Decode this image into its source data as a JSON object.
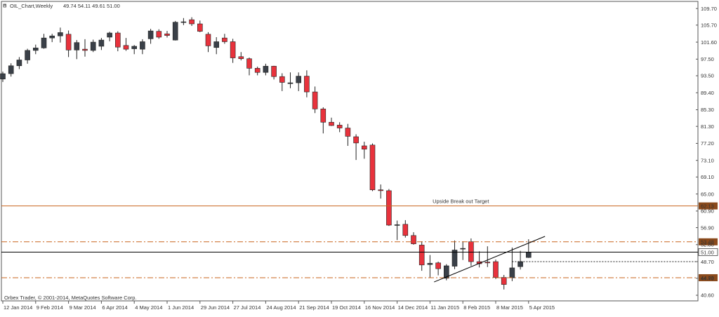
{
  "header": {
    "symbol_timeframe": "OIL_Chart,Weekly",
    "ohlc_readout": "49.74 54.11 49.61 51.00"
  },
  "copyright": "Orbex Trader, © 2001-2014, MetaQuotes Software Corp.",
  "colors": {
    "bull": "#3a4048",
    "bear": "#e8323c",
    "wick": "#222222",
    "axis": "#555555",
    "resistance": "#c8641e",
    "dashdot": "#c8641e",
    "price_line": "#000000",
    "trendline": "#000000"
  },
  "chart_data": {
    "type": "candlestick",
    "title": "",
    "ylim": [
      40.6,
      110.4
    ],
    "y_ticks": [
      "109.70",
      "105.70",
      "101.60",
      "97.50",
      "93.50",
      "89.40",
      "85.30",
      "81.30",
      "77.20",
      "73.10",
      "69.10",
      "65.00",
      "60.90",
      "56.90",
      "52.80",
      "48.70",
      "44.70",
      "40.60"
    ],
    "x_ticks": [
      {
        "i": 0,
        "label": "12 Jan 2014"
      },
      {
        "i": 4,
        "label": "9 Feb 2014"
      },
      {
        "i": 8,
        "label": "9 Mar 2014"
      },
      {
        "i": 12,
        "label": "6 Apr 2014"
      },
      {
        "i": 16,
        "label": "4 May 2014"
      },
      {
        "i": 20,
        "label": "1 Jun 2014"
      },
      {
        "i": 24,
        "label": "29 Jun 2014"
      },
      {
        "i": 28,
        "label": "27 Jul 2014"
      },
      {
        "i": 32,
        "label": "24 Aug 2014"
      },
      {
        "i": 36,
        "label": "21 Sep 2014"
      },
      {
        "i": 40,
        "label": "19 Oct 2014"
      },
      {
        "i": 44,
        "label": "16 Nov 2014"
      },
      {
        "i": 48,
        "label": "14 Dec 2014"
      },
      {
        "i": 52,
        "label": "11 Jan 2015"
      },
      {
        "i": 56,
        "label": "8 Feb 2015"
      },
      {
        "i": 60,
        "label": "8 Mar 2015"
      },
      {
        "i": 64,
        "label": "5 Apr 2015"
      }
    ],
    "candles": [
      {
        "o": 92.7,
        "h": 94.5,
        "l": 92.0,
        "c": 94.0
      },
      {
        "o": 94.0,
        "h": 96.5,
        "l": 93.3,
        "c": 95.9
      },
      {
        "o": 95.9,
        "h": 98.0,
        "l": 95.1,
        "c": 97.3
      },
      {
        "o": 97.3,
        "h": 100.0,
        "l": 96.4,
        "c": 99.6
      },
      {
        "o": 99.6,
        "h": 101.0,
        "l": 98.7,
        "c": 100.2
      },
      {
        "o": 100.2,
        "h": 103.6,
        "l": 100.0,
        "c": 102.6
      },
      {
        "o": 102.6,
        "h": 103.6,
        "l": 101.6,
        "c": 103.1
      },
      {
        "o": 103.1,
        "h": 105.1,
        "l": 101.5,
        "c": 103.9
      },
      {
        "o": 103.5,
        "h": 104.4,
        "l": 98.0,
        "c": 99.7
      },
      {
        "o": 99.7,
        "h": 102.1,
        "l": 97.5,
        "c": 101.5
      },
      {
        "o": 99.9,
        "h": 102.3,
        "l": 98.1,
        "c": 99.6
      },
      {
        "o": 99.6,
        "h": 102.2,
        "l": 99.2,
        "c": 101.6
      },
      {
        "o": 100.6,
        "h": 102.6,
        "l": 99.7,
        "c": 102.1
      },
      {
        "o": 102.8,
        "h": 104.1,
        "l": 101.8,
        "c": 103.8
      },
      {
        "o": 103.8,
        "h": 104.2,
        "l": 99.4,
        "c": 100.4
      },
      {
        "o": 100.8,
        "h": 102.6,
        "l": 99.5,
        "c": 99.9
      },
      {
        "o": 100.0,
        "h": 100.9,
        "l": 98.7,
        "c": 100.6
      },
      {
        "o": 99.9,
        "h": 102.3,
        "l": 98.7,
        "c": 101.7
      },
      {
        "o": 102.4,
        "h": 104.8,
        "l": 101.2,
        "c": 104.3
      },
      {
        "o": 104.2,
        "h": 104.7,
        "l": 102.4,
        "c": 102.8
      },
      {
        "o": 103.6,
        "h": 104.3,
        "l": 102.7,
        "c": 103.2
      },
      {
        "o": 102.1,
        "h": 106.7,
        "l": 102.0,
        "c": 106.4
      },
      {
        "o": 106.4,
        "h": 107.4,
        "l": 105.7,
        "c": 106.5
      },
      {
        "o": 107.0,
        "h": 107.6,
        "l": 105.5,
        "c": 106.0
      },
      {
        "o": 106.0,
        "h": 106.8,
        "l": 104.0,
        "c": 104.2
      },
      {
        "o": 103.5,
        "h": 104.0,
        "l": 99.2,
        "c": 100.7
      },
      {
        "o": 100.3,
        "h": 102.8,
        "l": 98.7,
        "c": 101.7
      },
      {
        "o": 102.6,
        "h": 103.6,
        "l": 101.2,
        "c": 101.7
      },
      {
        "o": 101.7,
        "h": 102.4,
        "l": 96.6,
        "c": 97.8
      },
      {
        "o": 98.1,
        "h": 99.2,
        "l": 97.2,
        "c": 97.6
      },
      {
        "o": 97.6,
        "h": 97.9,
        "l": 93.6,
        "c": 95.3
      },
      {
        "o": 95.3,
        "h": 95.7,
        "l": 93.6,
        "c": 94.3
      },
      {
        "o": 94.3,
        "h": 96.4,
        "l": 93.6,
        "c": 95.8
      },
      {
        "o": 95.8,
        "h": 95.9,
        "l": 92.6,
        "c": 93.3
      },
      {
        "o": 93.3,
        "h": 94.1,
        "l": 89.8,
        "c": 91.9
      },
      {
        "o": 91.6,
        "h": 94.3,
        "l": 90.5,
        "c": 91.8
      },
      {
        "o": 91.8,
        "h": 94.3,
        "l": 89.8,
        "c": 93.4
      },
      {
        "o": 93.4,
        "h": 94.8,
        "l": 88.3,
        "c": 89.6
      },
      {
        "o": 89.6,
        "h": 90.9,
        "l": 84.5,
        "c": 85.5
      },
      {
        "o": 85.5,
        "h": 85.9,
        "l": 79.6,
        "c": 82.3
      },
      {
        "o": 82.3,
        "h": 83.4,
        "l": 81.4,
        "c": 81.5
      },
      {
        "o": 81.6,
        "h": 82.3,
        "l": 79.9,
        "c": 80.9
      },
      {
        "o": 80.9,
        "h": 81.9,
        "l": 76.6,
        "c": 78.9
      },
      {
        "o": 78.8,
        "h": 79.4,
        "l": 73.2,
        "c": 77.3
      },
      {
        "o": 76.6,
        "h": 77.6,
        "l": 73.5,
        "c": 75.8
      },
      {
        "o": 76.8,
        "h": 77.2,
        "l": 65.7,
        "c": 66.0
      },
      {
        "o": 66.0,
        "h": 67.3,
        "l": 63.9,
        "c": 65.8
      },
      {
        "o": 65.8,
        "h": 66.2,
        "l": 57.3,
        "c": 57.5
      },
      {
        "o": 57.6,
        "h": 58.6,
        "l": 53.9,
        "c": 57.6
      },
      {
        "o": 57.7,
        "h": 58.7,
        "l": 54.5,
        "c": 55.0
      },
      {
        "o": 55.0,
        "h": 55.8,
        "l": 52.8,
        "c": 53.0
      },
      {
        "o": 52.7,
        "h": 53.6,
        "l": 46.5,
        "c": 47.9
      },
      {
        "o": 48.0,
        "h": 50.3,
        "l": 44.8,
        "c": 48.3
      },
      {
        "o": 48.4,
        "h": 48.7,
        "l": 45.4,
        "c": 47.0
      },
      {
        "o": 44.7,
        "h": 48.1,
        "l": 44.2,
        "c": 47.7
      },
      {
        "o": 47.6,
        "h": 53.8,
        "l": 46.9,
        "c": 51.5
      },
      {
        "o": 51.9,
        "h": 53.6,
        "l": 49.1,
        "c": 51.9
      },
      {
        "o": 53.5,
        "h": 54.3,
        "l": 47.7,
        "c": 48.7
      },
      {
        "o": 48.7,
        "h": 51.2,
        "l": 47.3,
        "c": 48.2
      },
      {
        "o": 48.6,
        "h": 52.4,
        "l": 47.4,
        "c": 48.4
      },
      {
        "o": 48.7,
        "h": 49.2,
        "l": 44.5,
        "c": 44.9
      },
      {
        "o": 44.9,
        "h": 45.5,
        "l": 42.0,
        "c": 43.2
      },
      {
        "o": 44.8,
        "h": 52.1,
        "l": 44.0,
        "c": 47.2
      },
      {
        "o": 47.5,
        "h": 51.3,
        "l": 46.8,
        "c": 48.7
      },
      {
        "o": 49.7,
        "h": 54.1,
        "l": 49.6,
        "c": 51.0
      }
    ],
    "horizontal_levels": [
      {
        "name": "breakout-target",
        "value": 62.13,
        "label": "62.13",
        "style": "solid"
      },
      {
        "name": "resistance-upper",
        "value": 53.48,
        "label": "53.48",
        "style": "dashdot"
      },
      {
        "name": "current-price",
        "value": 51.0,
        "label": "51.00",
        "style": "solid"
      },
      {
        "name": "support-lower",
        "value": 44.83,
        "label": "44.83",
        "style": "dashdot"
      }
    ],
    "dotted_level": {
      "value": 48.7,
      "from_index": 62
    },
    "annotation": {
      "text": "Upside Break out Target",
      "at_index": 53,
      "value": 62.13
    },
    "trendline": {
      "start": {
        "i": 52.5,
        "v": 43.8
      },
      "end": {
        "i": 66,
        "v": 54.8
      }
    }
  }
}
